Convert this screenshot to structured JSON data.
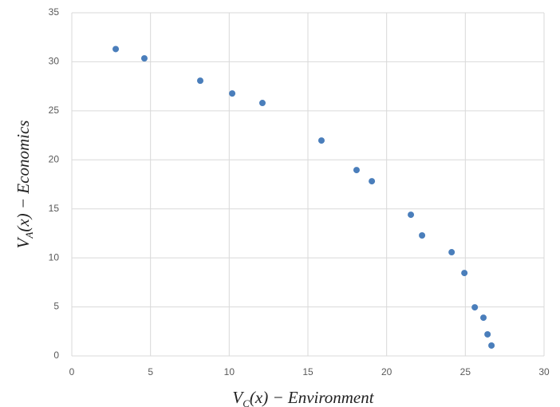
{
  "chart_data": {
    "type": "scatter",
    "x_label": {
      "main": "V",
      "sub": "C",
      "rest": "(x) − Environment"
    },
    "y_label": {
      "main": "V",
      "sub": "A",
      "rest": "(x) − Economics"
    },
    "x": [
      2.79,
      4.61,
      8.16,
      10.19,
      12.11,
      15.86,
      18.09,
      19.06,
      21.54,
      22.25,
      24.13,
      24.94,
      25.6,
      26.15,
      26.41,
      26.66
    ],
    "values": [
      31.3,
      30.35,
      28.07,
      26.77,
      25.8,
      21.97,
      18.96,
      17.82,
      14.4,
      12.29,
      10.58,
      8.46,
      4.96,
      3.9,
      2.2,
      1.06
    ],
    "color": "#4a7ebb",
    "xlim": [
      0,
      30
    ],
    "xticks": [
      0,
      5,
      10,
      15,
      20,
      25,
      30
    ],
    "ylim": [
      0,
      35
    ],
    "yticks": [
      0,
      5,
      10,
      15,
      20,
      25,
      30,
      35
    ],
    "grid": true
  }
}
